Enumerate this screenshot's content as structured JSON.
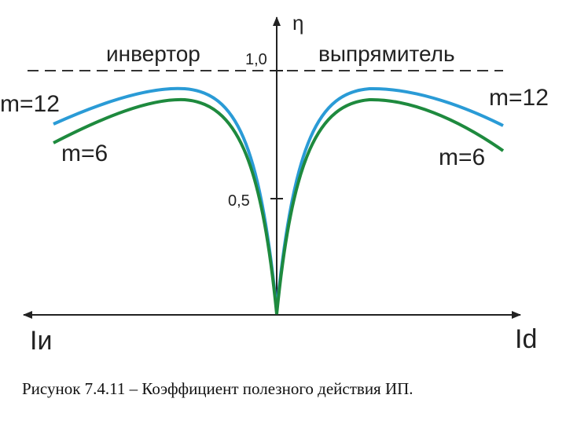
{
  "title": "Рисунок 7.4.11 – Коэффициент полезного действия ИП.",
  "axes": {
    "y_label": "η",
    "x_left_label": "Iи",
    "x_right_label": "Id",
    "ticks": [
      "1,0",
      "0,5"
    ]
  },
  "regions": [
    "инвертор",
    "выпрямитель"
  ],
  "curves": [
    {
      "name_left": "m=12",
      "name_right": "m=12"
    },
    {
      "name_left": "m=6",
      "name_right": "m=6"
    }
  ]
}
